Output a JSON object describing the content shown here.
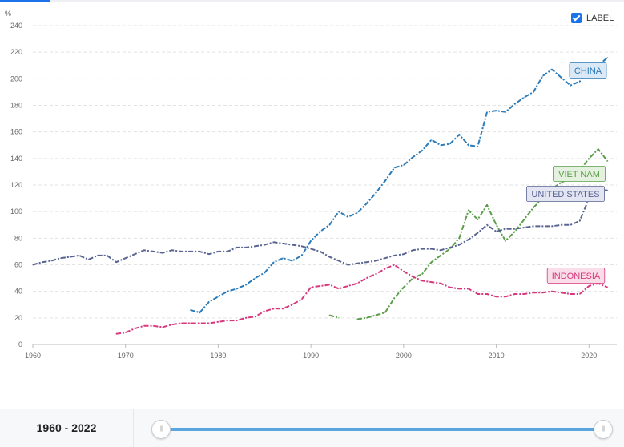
{
  "label_toggle": {
    "text": "LABEL",
    "checked": true
  },
  "footer": {
    "range_text": "1960 - 2022",
    "range_start": 1960,
    "range_end": 2022
  },
  "chart_data": {
    "type": "line",
    "ylabel": "%",
    "xlim": [
      1960,
      2023
    ],
    "ylim": [
      0,
      240
    ],
    "x_ticks": [
      1960,
      1970,
      1980,
      1990,
      2000,
      2010,
      2020
    ],
    "y_ticks": [
      0,
      20,
      40,
      60,
      80,
      100,
      120,
      140,
      160,
      180,
      200,
      220,
      240
    ],
    "grid": "horizontal dashed",
    "series": [
      {
        "name": "CHINA",
        "color": "#2b7bb9",
        "label_fill": "#dbe9f6",
        "x": [
          1977,
          1978,
          1979,
          1980,
          1981,
          1982,
          1983,
          1984,
          1985,
          1986,
          1987,
          1988,
          1989,
          1990,
          1991,
          1992,
          1993,
          1994,
          1995,
          1996,
          1997,
          1998,
          1999,
          2000,
          2001,
          2002,
          2003,
          2004,
          2005,
          2006,
          2007,
          2008,
          2009,
          2010,
          2011,
          2012,
          2013,
          2014,
          2015,
          2016,
          2017,
          2018,
          2019,
          2020,
          2021,
          2022
        ],
        "y": [
          26,
          24,
          32,
          36,
          40,
          42,
          45,
          50,
          54,
          62,
          65,
          63,
          67,
          78,
          85,
          90,
          100,
          96,
          99,
          106,
          114,
          123,
          133,
          135,
          141,
          146,
          154,
          150,
          151,
          158,
          150,
          149,
          175,
          176,
          175,
          181,
          186,
          190,
          202,
          207,
          201,
          195,
          198,
          207,
          210,
          216
        ]
      },
      {
        "name": "VIET NAM",
        "color": "#5c9e4b",
        "label_fill": "#e3f1de",
        "x": [
          1992,
          1993,
          null,
          1995,
          1996,
          1997,
          1998,
          1999,
          2000,
          2001,
          2002,
          2003,
          2004,
          2005,
          2006,
          2007,
          2008,
          2009,
          2010,
          2011,
          2012,
          2013,
          2014,
          2015,
          2016,
          2017,
          2018,
          2019,
          2020,
          2021,
          2022
        ],
        "y": [
          22,
          20,
          null,
          19,
          20,
          22,
          24,
          35,
          43,
          50,
          53,
          62,
          67,
          72,
          80,
          101,
          94,
          105,
          90,
          78,
          85,
          94,
          103,
          110,
          117,
          122,
          125,
          131,
          140,
          147,
          138
        ]
      },
      {
        "name": "UNITED STATES",
        "color": "#5a6491",
        "label_fill": "#e3e5f2",
        "x": [
          1960,
          1961,
          1962,
          1963,
          1964,
          1965,
          1966,
          1967,
          1968,
          1969,
          1970,
          1971,
          1972,
          1973,
          1974,
          1975,
          1976,
          1977,
          1978,
          1979,
          1980,
          1981,
          1982,
          1983,
          1984,
          1985,
          1986,
          1987,
          1988,
          1989,
          1990,
          1991,
          1992,
          1993,
          1994,
          1995,
          1996,
          1997,
          1998,
          1999,
          2000,
          2001,
          2002,
          2003,
          2004,
          2005,
          2006,
          2007,
          2008,
          2009,
          2010,
          2011,
          2012,
          2013,
          2014,
          2015,
          2016,
          2017,
          2018,
          2019,
          2020,
          2021,
          2022
        ],
        "y": [
          60,
          62,
          63,
          65,
          66,
          67,
          64,
          67,
          67,
          62,
          65,
          68,
          71,
          70,
          69,
          71,
          70,
          70,
          70,
          68,
          70,
          70,
          73,
          73,
          74,
          75,
          77,
          76,
          75,
          74,
          72,
          70,
          66,
          63,
          60,
          61,
          62,
          63,
          65,
          67,
          68,
          71,
          72,
          72,
          71,
          73,
          75,
          79,
          84,
          90,
          85,
          87,
          87,
          88,
          89,
          89,
          89,
          90,
          90,
          93,
          110,
          116,
          116
        ]
      },
      {
        "name": "INDONESIA",
        "color": "#d6397d",
        "label_fill": "#f9dde8",
        "x": [
          1969,
          1970,
          1971,
          1972,
          1973,
          1974,
          1975,
          1976,
          1977,
          1978,
          1979,
          1980,
          1981,
          1982,
          1983,
          1984,
          1985,
          1986,
          1987,
          1988,
          1989,
          1990,
          1991,
          1992,
          1993,
          1994,
          1995,
          1996,
          1997,
          1998,
          1999,
          2000,
          2001,
          2002,
          2003,
          2004,
          2005,
          2006,
          2007,
          2008,
          2009,
          2010,
          2011,
          2012,
          2013,
          2014,
          2015,
          2016,
          2017,
          2018,
          2019,
          2020,
          2021,
          2022
        ],
        "y": [
          8,
          9,
          12,
          14,
          14,
          13,
          15,
          16,
          16,
          16,
          16,
          17,
          18,
          18,
          20,
          21,
          25,
          27,
          27,
          30,
          34,
          43,
          44,
          45,
          42,
          44,
          46,
          50,
          53,
          57,
          60,
          55,
          51,
          48,
          47,
          46,
          43,
          42,
          42,
          38,
          38,
          36,
          36,
          38,
          38,
          39,
          39,
          40,
          39,
          38,
          38,
          44,
          46,
          43
        ]
      }
    ]
  }
}
